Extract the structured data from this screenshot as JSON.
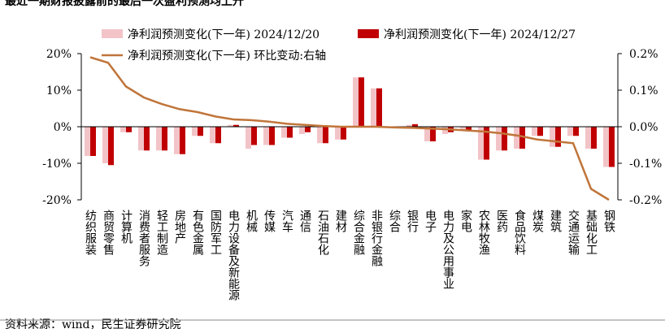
{
  "chart_data": {
    "type": "bar_line",
    "title": "最近一期财报披露前的最后一次盈利预测均上升",
    "source": "资料来源：wind，民生证券研究院",
    "categories": [
      "纺织服装",
      "商贸零售",
      "计算机",
      "消费者服务",
      "轻工制造",
      "房地产",
      "有色金属",
      "国防军工",
      "电力设备及新能源",
      "机械",
      "传媒",
      "汽车",
      "通信",
      "石油石化",
      "建材",
      "综合金融",
      "非银行金融",
      "综合",
      "银行",
      "电子",
      "电力及公用事业",
      "家电",
      "农林牧渔",
      "医药",
      "食品饮料",
      "煤炭",
      "建筑",
      "交通运输",
      "基础化工",
      "钢铁"
    ],
    "series": [
      {
        "name": "净利润预测变化(下一年) 2024/12/20",
        "color": "#f2c4c8",
        "type": "bar",
        "values": [
          -8,
          -10,
          -1.5,
          -6.5,
          -6.5,
          -7.5,
          -2.5,
          -4.5,
          0.5,
          -6,
          -5,
          -3,
          -2,
          -4.5,
          -3.5,
          13.5,
          10.5,
          -0.3,
          0.5,
          -4,
          -2,
          -1,
          -9,
          -6.5,
          -6,
          -2.5,
          -5.5,
          -2.5,
          -6,
          -11
        ]
      },
      {
        "name": "净利润预测变化(下一年) 2024/12/27",
        "color": "#c00000",
        "type": "bar",
        "values": [
          -8,
          -10.5,
          -1.5,
          -6.5,
          -6.5,
          -7.5,
          -2.5,
          -4.5,
          0.5,
          -5,
          -5,
          -3,
          -1.5,
          -4.5,
          -3.5,
          13.5,
          10.5,
          -0.3,
          0.7,
          -4,
          -1.5,
          -1,
          -9,
          -6.5,
          -6,
          -2.5,
          -5.5,
          -2.5,
          -6,
          -11
        ]
      },
      {
        "name": "净利润预测变化(下一年) 环比变动:右轴",
        "color": "#c0753a",
        "type": "line",
        "axis": "y2",
        "values": [
          0.19,
          0.175,
          0.11,
          0.08,
          0.062,
          0.048,
          0.04,
          0.028,
          0.02,
          0.018,
          0.014,
          0.008,
          0.005,
          0.002,
          0,
          0,
          0,
          -0.002,
          -0.003,
          -0.005,
          -0.007,
          -0.01,
          -0.013,
          -0.018,
          -0.025,
          -0.035,
          -0.04,
          -0.045,
          -0.17,
          -0.2
        ]
      }
    ],
    "ylim": [
      -20,
      20
    ],
    "yticks": [
      {
        "value": -20,
        "label": "-20%"
      },
      {
        "value": -10,
        "label": "-10%"
      },
      {
        "value": 0,
        "label": "0%"
      },
      {
        "value": 10,
        "label": "10%"
      },
      {
        "value": 20,
        "label": "20%"
      }
    ],
    "y2lim": [
      -0.2,
      0.2
    ],
    "y2ticks": [
      {
        "value": -0.2,
        "label": "-0.2%"
      },
      {
        "value": -0.1,
        "label": "-0.1%"
      },
      {
        "value": 0,
        "label": "0.0%"
      },
      {
        "value": 0.1,
        "label": "0.1%"
      },
      {
        "value": 0.2,
        "label": "0.2%"
      }
    ]
  }
}
